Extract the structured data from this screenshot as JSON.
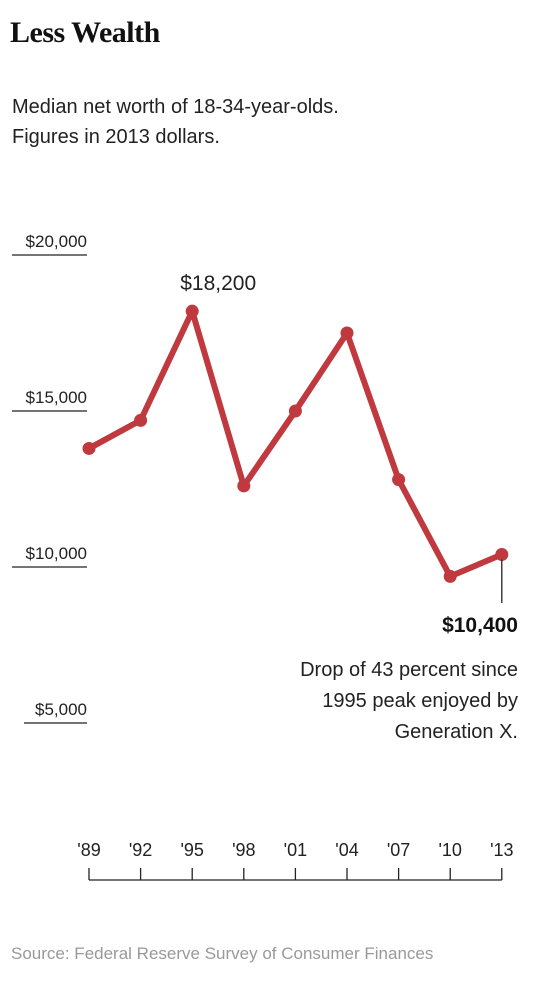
{
  "title": "Less Wealth",
  "subtitle_lines": [
    "Median net worth of 18-34-year-olds.",
    "Figures in 2013 dollars."
  ],
  "source": "Source: Federal Reserve Survey of Consumer Finances",
  "colors": {
    "line": "#c0393f",
    "text": "#222222",
    "source": "#999999"
  },
  "chart_data": {
    "type": "line",
    "title": "Less Wealth",
    "subtitle": "Median net worth of 18-34-year-olds. Figures in 2013 dollars.",
    "categories": [
      "'89",
      "'92",
      "'95",
      "'98",
      "'01",
      "'04",
      "'07",
      "'10",
      "'13"
    ],
    "x_years": [
      1989,
      1992,
      1995,
      1998,
      2001,
      2004,
      2007,
      2010,
      2013
    ],
    "values": [
      13800,
      14700,
      18200,
      12600,
      15000,
      17500,
      12800,
      9700,
      10400
    ],
    "yticks": [
      {
        "value": 20000,
        "label": "$20,000"
      },
      {
        "value": 15000,
        "label": "$15,000"
      },
      {
        "value": 10000,
        "label": "$10,000"
      },
      {
        "value": 5000,
        "label": "$5,000"
      }
    ],
    "ylim": [
      5000,
      20000
    ],
    "grid": false,
    "annotations": {
      "peak_label": "$18,200",
      "end_label": "$10,400",
      "note_lines": [
        "Drop of 43 percent since",
        "1995 peak enjoyed by",
        "Generation X."
      ]
    }
  }
}
